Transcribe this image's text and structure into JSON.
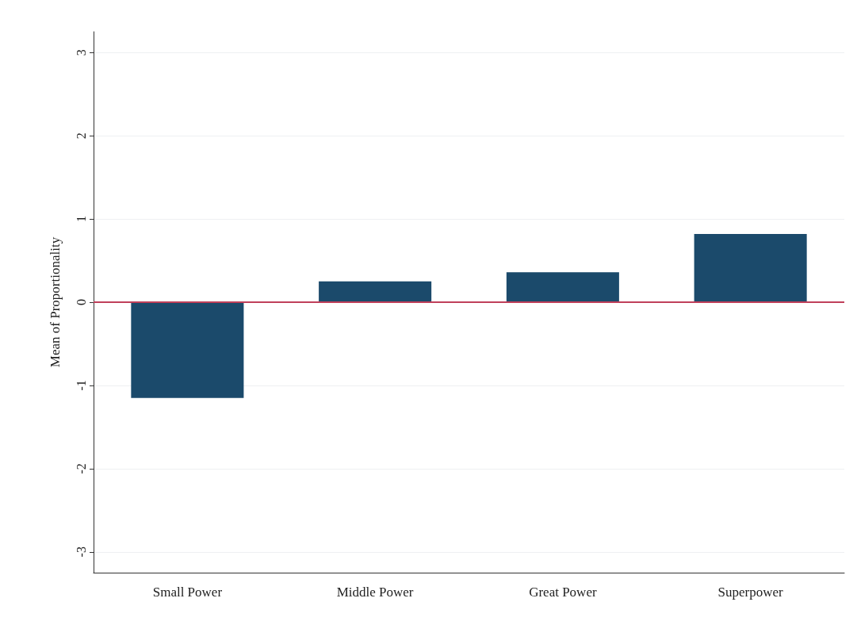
{
  "chart_data": {
    "type": "bar",
    "ylabel": "Mean of Proportionality",
    "categories": [
      "Small Power",
      "Middle Power",
      "Great Power",
      "Superpower"
    ],
    "series": [
      {
        "color": "#1b4a6b",
        "values": [
          -1.15,
          0.25,
          0.36,
          0.82
        ]
      }
    ],
    "ylim": [
      -3.25,
      3.25
    ],
    "yticks": [
      -3,
      -2,
      -1,
      0,
      1,
      2,
      3
    ],
    "grid": "y",
    "ref_lines": [
      {
        "axis": "y",
        "value": 0,
        "color": "#c0405a"
      }
    ]
  }
}
